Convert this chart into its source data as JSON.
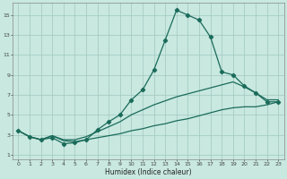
{
  "xlabel": "Humidex (Indice chaleur)",
  "bg_color": "#c8e8e0",
  "grid_color": "#a0c8c0",
  "line_color": "#1a6b5a",
  "xlim": [
    -0.5,
    23.5
  ],
  "ylim": [
    0.5,
    16.2
  ],
  "xticks": [
    0,
    1,
    2,
    3,
    4,
    5,
    6,
    7,
    8,
    9,
    10,
    11,
    12,
    13,
    14,
    15,
    16,
    17,
    18,
    19,
    20,
    21,
    22,
    23
  ],
  "yticks": [
    1,
    3,
    5,
    7,
    9,
    11,
    13,
    15
  ],
  "series1_x": [
    0,
    1,
    2,
    3,
    4,
    5,
    6,
    7,
    8,
    9,
    10,
    11,
    12,
    13,
    14,
    15,
    16,
    17,
    18,
    19,
    20,
    21,
    22,
    23
  ],
  "series1_y": [
    3.4,
    2.8,
    2.5,
    2.7,
    2.1,
    2.2,
    2.5,
    3.5,
    4.3,
    5.0,
    6.5,
    7.5,
    9.5,
    12.5,
    15.5,
    15.0,
    14.5,
    12.8,
    9.3,
    9.0,
    7.9,
    7.2,
    6.3,
    6.3
  ],
  "series2_x": [
    0,
    1,
    2,
    3,
    4,
    5,
    6,
    7,
    8,
    9,
    10,
    11,
    12,
    13,
    14,
    15,
    16,
    17,
    18,
    19,
    20,
    21,
    22,
    23
  ],
  "series2_y": [
    3.4,
    2.8,
    2.5,
    2.9,
    2.5,
    2.5,
    2.8,
    3.3,
    3.8,
    4.3,
    5.0,
    5.5,
    6.0,
    6.4,
    6.8,
    7.1,
    7.4,
    7.7,
    8.0,
    8.3,
    7.8,
    7.2,
    6.5,
    6.5
  ],
  "series3_x": [
    0,
    1,
    2,
    3,
    4,
    5,
    6,
    7,
    8,
    9,
    10,
    11,
    12,
    13,
    14,
    15,
    16,
    17,
    18,
    19,
    20,
    21,
    22,
    23
  ],
  "series3_y": [
    3.4,
    2.8,
    2.5,
    2.9,
    2.4,
    2.3,
    2.5,
    2.7,
    2.9,
    3.1,
    3.4,
    3.6,
    3.9,
    4.1,
    4.4,
    4.6,
    4.9,
    5.2,
    5.5,
    5.7,
    5.8,
    5.8,
    6.0,
    6.3
  ]
}
